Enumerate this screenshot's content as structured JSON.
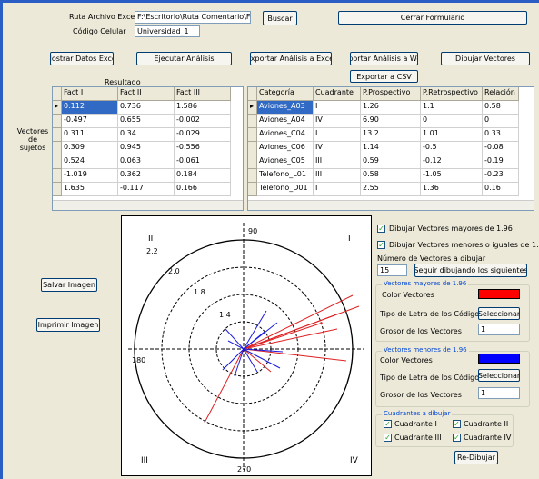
{
  "top": {
    "file_label": "Ruta Archivo Excel",
    "file_path": "F:\\Escritorio\\Ruta Comentario\\Ficha",
    "browse": "Buscar",
    "close": "Cerrar Formulario",
    "code_label": "Código Celular",
    "code_value": "Universidad_1"
  },
  "buttons": [
    "Mostrar Datos Excel",
    "Ejecutar Análisis",
    "Exportar Análisis a Excel",
    "Exportar Análisis a Word",
    "Dibujar Vectores",
    "Exportar a CSV"
  ],
  "result_label": "Resultado",
  "left_table": {
    "side_label": "Vectores de sujetos",
    "columns": [
      "Fact I",
      "Fact II",
      "Fact III"
    ],
    "rows": [
      [
        "0.112",
        "0.736",
        "1.586"
      ],
      [
        "-0.497",
        "0.655",
        "-0.002"
      ],
      [
        "0.311",
        "0.34",
        "-0.029"
      ],
      [
        "0.309",
        "0.945",
        "-0.556"
      ],
      [
        "0.524",
        "0.063",
        "-0.061"
      ],
      [
        "-1.019",
        "0.362",
        "0.184"
      ],
      [
        "1.635",
        "-0.117",
        "0.166"
      ]
    ]
  },
  "right_table": {
    "columns": [
      "Categoría",
      "Cuadrante",
      "P.Prospectivo",
      "P.Retrospectivo",
      "Relación"
    ],
    "rows": [
      [
        "Aviones_A03",
        "I",
        "1.26",
        "1.1",
        "0.58"
      ],
      [
        "Aviones_A04",
        "IV",
        "6.90",
        "0",
        "0"
      ],
      [
        "Aviones_C04",
        "I",
        "13.2",
        "1.01",
        "0.33"
      ],
      [
        "Aviones_C06",
        "IV",
        "1.14",
        "-0.5",
        "-0.08"
      ],
      [
        "Aviones_C05",
        "III",
        "0.59",
        "-0.12",
        "-0.19"
      ],
      [
        "Telefono_L01",
        "III",
        "0.58",
        "-1.05",
        "-0.23"
      ],
      [
        "Telefono_D01",
        "I",
        "2.55",
        "1.36",
        "0.16"
      ]
    ]
  },
  "image_buttons": [
    "Salvar Imagen",
    "Imprimir Imagen"
  ],
  "plot": {
    "axis_labels": [
      "90",
      "180",
      "270"
    ],
    "quadrants": [
      "I",
      "II",
      "III",
      "IV"
    ],
    "ring_labels": [
      "2.2",
      "2.0",
      "1.8",
      "1.4"
    ]
  },
  "options": {
    "draw_major": "Dibujar Vectores mayores de 1.96",
    "draw_minor": "Dibujar Vectores menores o iguales de 1.96",
    "count_label": "Número de Vectores a dibujar",
    "count_value": "15",
    "next_button": "Seguir dibujando los siguientes"
  },
  "major_group": {
    "title": "Vectores mayores de 1.96",
    "color_label": "Color Vectores",
    "font_label": "Tipo de Letra de los Códigos",
    "select": "Seleccionar",
    "width_label": "Grosor de los Vectores",
    "width_value": "1"
  },
  "minor_group": {
    "title": "Vectores menores de 1.96",
    "color_label": "Color Vectores",
    "font_label": "Tipo de Letra de los Códigos",
    "select": "Seleccionar",
    "width_label": "Grosor de los Vectores",
    "width_value": "1"
  },
  "quadrant_group": {
    "title": "Cuadrantes a dibujar",
    "items": [
      "Cuadrante I",
      "Cuadrante II",
      "Cuadrante III",
      "Cuadrante IV"
    ]
  },
  "redraw": "Re-Dibujar"
}
